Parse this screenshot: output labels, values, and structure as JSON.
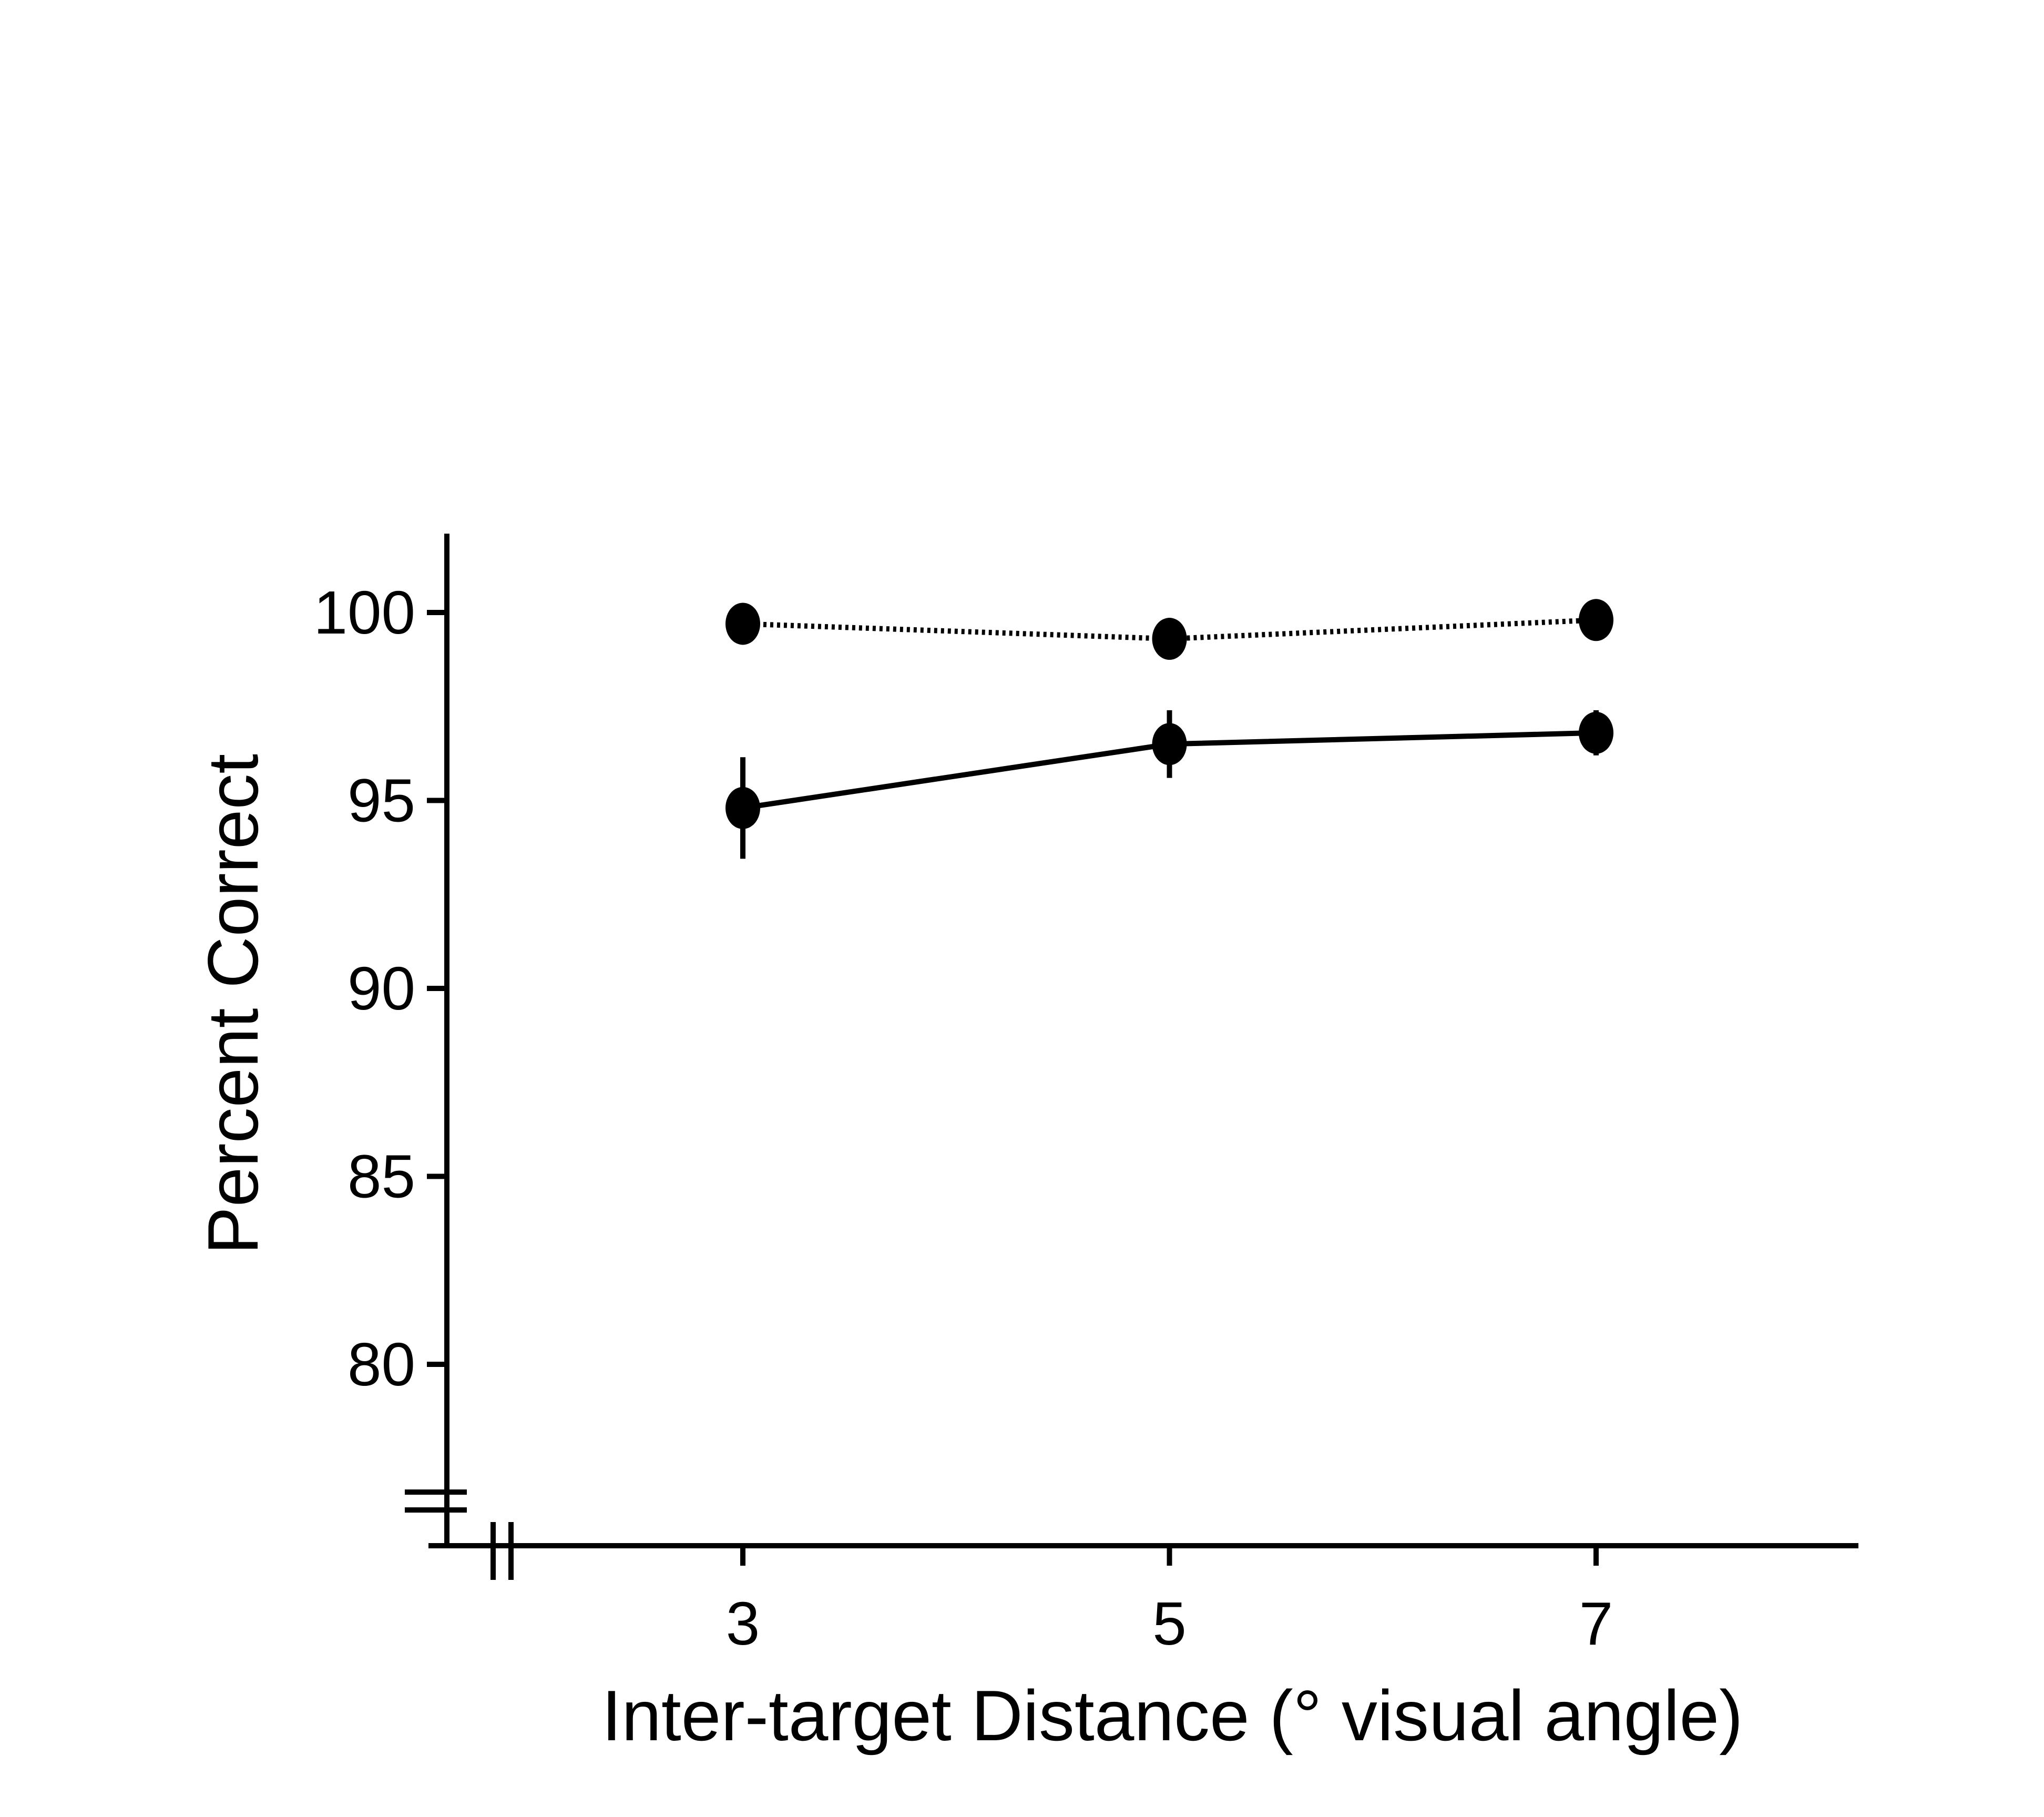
{
  "chart_data": {
    "type": "line",
    "title": "",
    "xlabel": "Inter-target Distance (° visual angle)",
    "ylabel": "Percent Correct",
    "x": [
      3,
      5,
      7
    ],
    "x_ticks": [
      "3",
      "5",
      "7"
    ],
    "xlim": [
      1.6,
      8.2
    ],
    "y_ticks": [
      "80",
      "85",
      "90",
      "95",
      "100"
    ],
    "ylim": [
      75,
      102
    ],
    "axis_breaks": {
      "x": true,
      "y": true
    },
    "grid": false,
    "legend": "none",
    "series": [
      {
        "style": "dotted",
        "values": [
          99.7,
          99.3,
          99.8
        ],
        "errors": [
          0.3,
          0.3,
          0.3
        ]
      },
      {
        "style": "solid",
        "values": [
          94.8,
          96.5,
          96.8
        ],
        "errors": [
          1.35,
          0.9,
          0.6
        ]
      }
    ],
    "colors": {
      "line": "#000000",
      "marker": "#000000"
    }
  }
}
